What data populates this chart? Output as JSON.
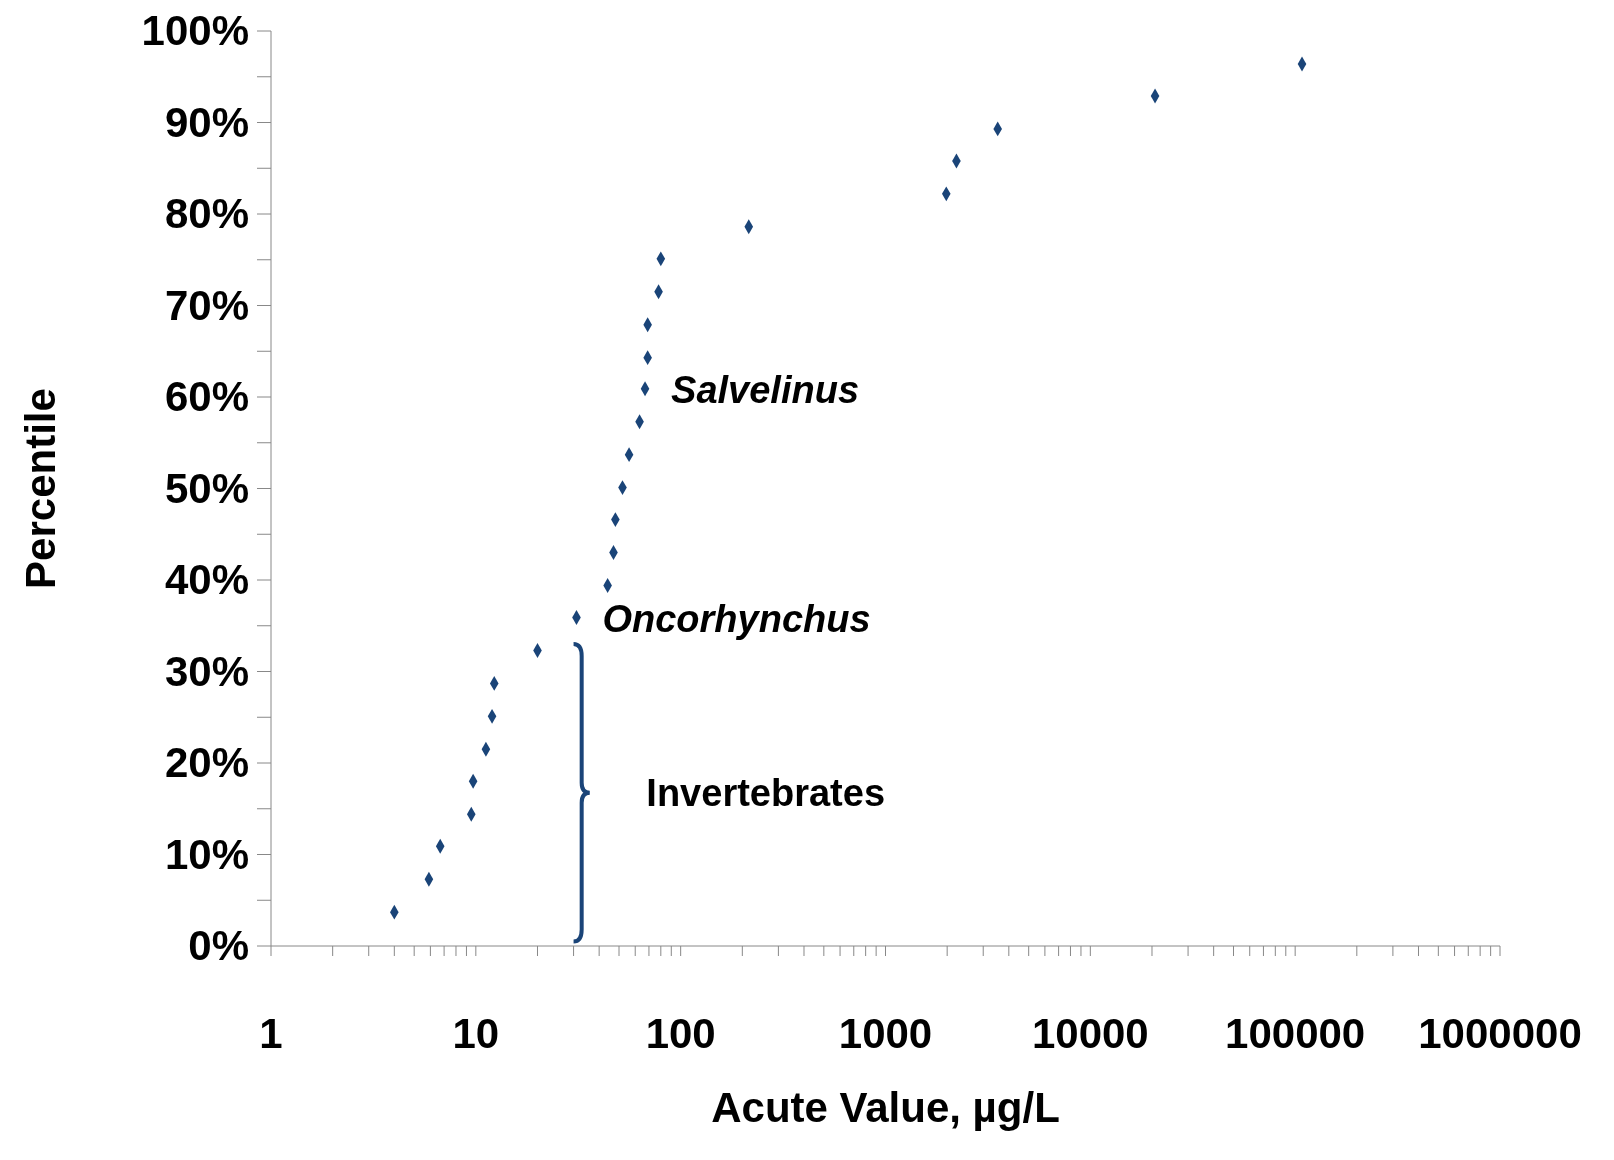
{
  "chart_data": {
    "type": "scatter",
    "xlabel": "Acute Value, µg/L",
    "ylabel": "Percentile",
    "log": "x",
    "grid": false,
    "legend": false,
    "marker": "diamond",
    "xlim": [
      1,
      1000000
    ],
    "xticks": [
      1,
      {
        "value": 2,
        "label": null
      },
      {
        "value": 3,
        "label": null
      },
      {
        "value": 4,
        "label": null
      },
      {
        "value": 5,
        "label": null
      },
      {
        "value": 6,
        "label": null
      },
      {
        "value": 7,
        "label": null
      },
      {
        "value": 8,
        "label": null
      },
      {
        "value": 9,
        "label": null
      },
      10,
      {
        "value": 20,
        "label": null
      },
      {
        "value": 30,
        "label": null
      },
      {
        "value": 40,
        "label": null
      },
      {
        "value": 50,
        "label": null
      },
      {
        "value": 60,
        "label": null
      },
      {
        "value": 70,
        "label": null
      },
      {
        "value": 80,
        "label": null
      },
      {
        "value": 90,
        "label": null
      },
      100,
      {
        "value": 200,
        "label": null
      },
      {
        "value": 300,
        "label": null
      },
      {
        "value": 400,
        "label": null
      },
      {
        "value": 500,
        "label": null
      },
      {
        "value": 600,
        "label": null
      },
      {
        "value": 700,
        "label": null
      },
      {
        "value": 800,
        "label": null
      },
      {
        "value": 900,
        "label": null
      },
      1000,
      {
        "value": 2000,
        "label": null
      },
      {
        "value": 3000,
        "label": null
      },
      {
        "value": 4000,
        "label": null
      },
      {
        "value": 5000,
        "label": null
      },
      {
        "value": 6000,
        "label": null
      },
      {
        "value": 7000,
        "label": null
      },
      {
        "value": 8000,
        "label": null
      },
      {
        "value": 9000,
        "label": null
      },
      10000,
      {
        "value": 20000,
        "label": null
      },
      {
        "value": 30000,
        "label": null
      },
      {
        "value": 40000,
        "label": null
      },
      {
        "value": 50000,
        "label": null
      },
      {
        "value": 60000,
        "label": null
      },
      {
        "value": 70000,
        "label": null
      },
      {
        "value": 80000,
        "label": null
      },
      {
        "value": 90000,
        "label": null
      },
      100000,
      {
        "value": 200000,
        "label": null
      },
      {
        "value": 300000,
        "label": null
      },
      {
        "value": 400000,
        "label": null
      },
      {
        "value": 500000,
        "label": null
      },
      {
        "value": 600000,
        "label": null
      },
      {
        "value": 700000,
        "label": null
      },
      {
        "value": 800000,
        "label": null
      },
      {
        "value": 900000,
        "label": null
      },
      1000000
    ],
    "ylim": [
      0,
      100
    ],
    "yticks": [
      {
        "value": 0,
        "label": "0%"
      },
      {
        "value": 5,
        "label": null
      },
      {
        "value": 10,
        "label": "10%"
      },
      {
        "value": 15,
        "label": null
      },
      {
        "value": 20,
        "label": "20%"
      },
      {
        "value": 25,
        "label": null
      },
      {
        "value": 30,
        "label": "30%"
      },
      {
        "value": 35,
        "label": null
      },
      {
        "value": 40,
        "label": "40%"
      },
      {
        "value": 45,
        "label": null
      },
      {
        "value": 50,
        "label": "50%"
      },
      {
        "value": 55,
        "label": null
      },
      {
        "value": 60,
        "label": "60%"
      },
      {
        "value": 65,
        "label": null
      },
      {
        "value": 70,
        "label": "70%"
      },
      {
        "value": 75,
        "label": null
      },
      {
        "value": 80,
        "label": "80%"
      },
      {
        "value": 85,
        "label": null
      },
      {
        "value": 90,
        "label": "90%"
      },
      {
        "value": 95,
        "label": null
      },
      {
        "value": 100,
        "label": "100%"
      }
    ],
    "series": [
      {
        "color": "#1a4478",
        "x": [
          4.0,
          5.9,
          6.7,
          9.5,
          9.7,
          11.2,
          12.0,
          12.3,
          20,
          31,
          44,
          47,
          48,
          52,
          56,
          63,
          67,
          69,
          69,
          78,
          80,
          215,
          1980,
          2220,
          3530,
          20700,
          108000
        ],
        "values": [
          3.7,
          7.3,
          10.9,
          14.4,
          18.0,
          21.5,
          25.1,
          28.7,
          32.3,
          35.9,
          39.4,
          43.0,
          46.6,
          50.1,
          53.7,
          57.3,
          60.9,
          64.3,
          67.9,
          71.5,
          75.1,
          78.6,
          82.2,
          85.8,
          89.3,
          92.9,
          96.4
        ]
      }
    ],
    "annotations": [
      {
        "text": "Salvelinus",
        "x": 67,
        "y": 60.9
      },
      {
        "text": "Oncorhynchus",
        "x": 31,
        "y": 35.9
      },
      "Invertebrates"
    ]
  }
}
